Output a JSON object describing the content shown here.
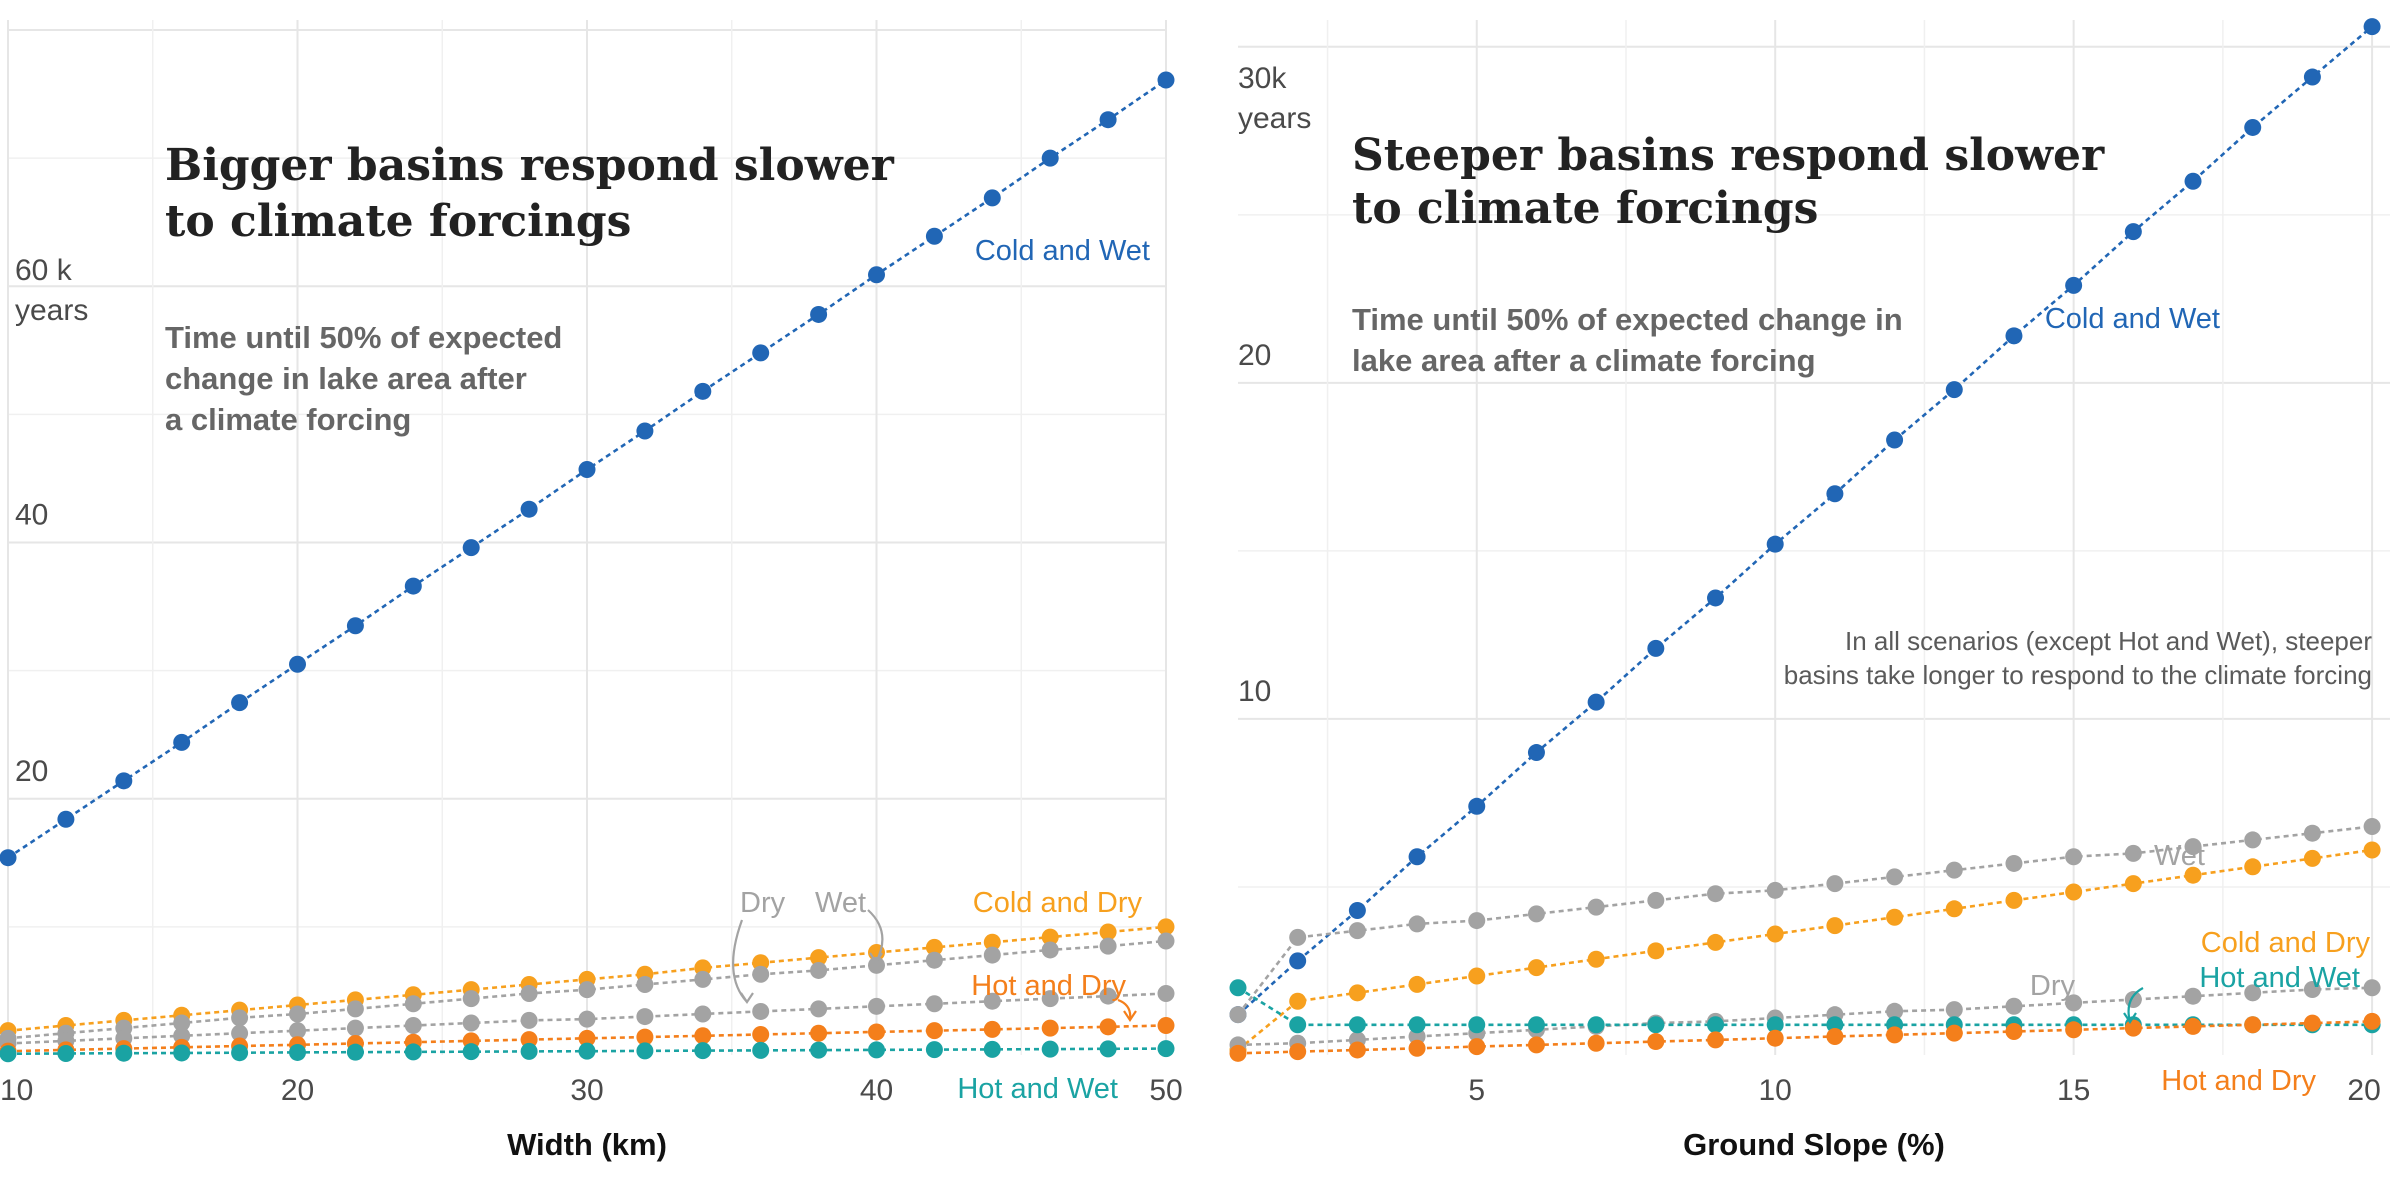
{
  "chart_data": [
    {
      "type": "line",
      "title_lines": [
        "Bigger basins respond slower",
        "to climate forcings"
      ],
      "subtitle_lines": [
        "Time until 50% of expected",
        "change in lake area after",
        "a climate forcing"
      ],
      "xlabel": "Width (km)",
      "ylabel": "years",
      "y_unit_top": "60 k",
      "y_unit_bottom": "years",
      "xlim": [
        10,
        50
      ],
      "ylim": [
        0,
        80
      ],
      "x_ticks": [
        "10",
        "20",
        "30",
        "40",
        "50"
      ],
      "y_ticks": [
        "20",
        "40"
      ],
      "grid": true,
      "x": [
        10,
        12,
        14,
        16,
        18,
        20,
        22,
        24,
        26,
        28,
        30,
        32,
        34,
        36,
        38,
        40,
        42,
        44,
        46,
        48,
        50
      ],
      "series": [
        {
          "name": "Cold and Wet",
          "color": "#2166b5",
          "values": [
            15.4,
            18.4,
            21.4,
            24.4,
            27.5,
            30.5,
            33.5,
            36.6,
            39.6,
            42.6,
            45.7,
            48.7,
            51.8,
            54.8,
            57.8,
            60.9,
            63.9,
            66.9,
            70.0,
            73.0,
            76.1
          ]
        },
        {
          "name": "Cold and Dry",
          "color": "#f7a01e",
          "values": [
            1.9,
            2.3,
            2.7,
            3.1,
            3.5,
            3.9,
            4.3,
            4.7,
            5.1,
            5.5,
            5.9,
            6.3,
            6.8,
            7.2,
            7.6,
            8.0,
            8.4,
            8.8,
            9.2,
            9.6,
            10.0
          ]
        },
        {
          "name": "Wet",
          "color": "#a3a3a3",
          "values": [
            1.3,
            1.7,
            2.1,
            2.5,
            2.9,
            3.2,
            3.6,
            4.0,
            4.4,
            4.8,
            5.1,
            5.5,
            5.9,
            6.3,
            6.6,
            7.0,
            7.4,
            7.8,
            8.2,
            8.5,
            8.9
          ]
        },
        {
          "name": "Dry",
          "color": "#a3a3a3",
          "values": [
            0.9,
            1.1,
            1.3,
            1.5,
            1.7,
            1.9,
            2.1,
            2.3,
            2.5,
            2.7,
            2.8,
            3.0,
            3.2,
            3.4,
            3.6,
            3.8,
            4.0,
            4.2,
            4.4,
            4.6,
            4.8
          ]
        },
        {
          "name": "Hot and Dry",
          "color": "#f47f1b",
          "values": [
            0.3,
            0.4,
            0.5,
            0.6,
            0.7,
            0.8,
            0.9,
            1.0,
            1.1,
            1.2,
            1.3,
            1.4,
            1.5,
            1.6,
            1.7,
            1.8,
            1.9,
            2.0,
            2.1,
            2.2,
            2.3
          ]
        },
        {
          "name": "Hot and Wet",
          "color": "#1aa3a3",
          "values": [
            0.1,
            0.12,
            0.14,
            0.16,
            0.18,
            0.2,
            0.22,
            0.24,
            0.26,
            0.28,
            0.3,
            0.32,
            0.34,
            0.36,
            0.38,
            0.4,
            0.42,
            0.44,
            0.46,
            0.48,
            0.5
          ]
        }
      ]
    },
    {
      "type": "line",
      "title_lines": [
        "Steeper basins respond slower",
        "to climate forcings"
      ],
      "subtitle_lines": [
        "Time until 50% of expected change in",
        "lake area after a climate forcing"
      ],
      "annotation_lines": [
        "In all scenarios (except Hot and Wet), steeper",
        "basins take longer to respond to the climate forcing"
      ],
      "xlabel": "Ground Slope (%)",
      "ylabel": "years",
      "y_unit_top": "30k",
      "y_unit_bottom": "years",
      "xlim": [
        1,
        20.3
      ],
      "ylim": [
        0,
        30.5
      ],
      "x_ticks": [
        "5",
        "10",
        "15",
        "20"
      ],
      "y_ticks": [
        "10",
        "20"
      ],
      "grid": true,
      "x": [
        1,
        2,
        3,
        4,
        5,
        6,
        7,
        8,
        9,
        10,
        11,
        12,
        13,
        14,
        15,
        16,
        17,
        18,
        19,
        20
      ],
      "series": [
        {
          "name": "Cold and Wet",
          "color": "#2166b5",
          "values": [
            1.2,
            2.8,
            4.3,
            5.9,
            7.4,
            9.0,
            10.5,
            12.1,
            13.6,
            15.2,
            16.7,
            18.3,
            19.8,
            21.4,
            22.9,
            24.5,
            26.0,
            27.6,
            29.1,
            30.6
          ]
        },
        {
          "name": "Wet",
          "color": "#a3a3a3",
          "values": [
            1.2,
            3.5,
            3.7,
            3.9,
            4.0,
            4.2,
            4.4,
            4.6,
            4.8,
            4.9,
            5.1,
            5.3,
            5.5,
            5.7,
            5.9,
            6.0,
            6.2,
            6.4,
            6.6,
            6.8
          ]
        },
        {
          "name": "Cold and Dry",
          "color": "#f7a01e",
          "values": [
            0.15,
            1.6,
            1.85,
            2.1,
            2.35,
            2.6,
            2.85,
            3.1,
            3.35,
            3.6,
            3.85,
            4.1,
            4.35,
            4.6,
            4.85,
            5.1,
            5.35,
            5.6,
            5.85,
            6.1
          ]
        },
        {
          "name": "Dry",
          "color": "#a3a3a3",
          "values": [
            0.3,
            0.35,
            0.45,
            0.55,
            0.65,
            0.75,
            0.85,
            0.95,
            1.0,
            1.1,
            1.2,
            1.3,
            1.35,
            1.45,
            1.55,
            1.65,
            1.75,
            1.85,
            1.95,
            2.0
          ]
        },
        {
          "name": "Hot and Wet",
          "color": "#1aa3a3",
          "values": [
            2.0,
            0.9,
            0.9,
            0.9,
            0.9,
            0.9,
            0.9,
            0.9,
            0.9,
            0.9,
            0.9,
            0.9,
            0.9,
            0.9,
            0.9,
            0.9,
            0.9,
            0.9,
            0.9,
            0.9
          ]
        },
        {
          "name": "Hot and Dry",
          "color": "#f47f1b",
          "values": [
            0.05,
            0.1,
            0.15,
            0.2,
            0.25,
            0.3,
            0.35,
            0.4,
            0.45,
            0.5,
            0.55,
            0.6,
            0.65,
            0.7,
            0.75,
            0.8,
            0.85,
            0.9,
            0.95,
            1.0
          ]
        }
      ]
    }
  ]
}
